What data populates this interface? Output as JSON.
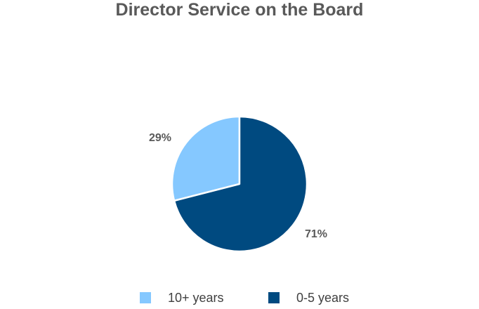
{
  "chart_data": {
    "type": "pie",
    "title": "Director Service on the Board",
    "slices": [
      {
        "label": "10+ years",
        "value": 29,
        "display": "29%",
        "color": "#85C8FF"
      },
      {
        "label": "0-5 years",
        "value": 71,
        "display": "71%",
        "color": "#004A80"
      }
    ],
    "legend_position": "bottom"
  }
}
